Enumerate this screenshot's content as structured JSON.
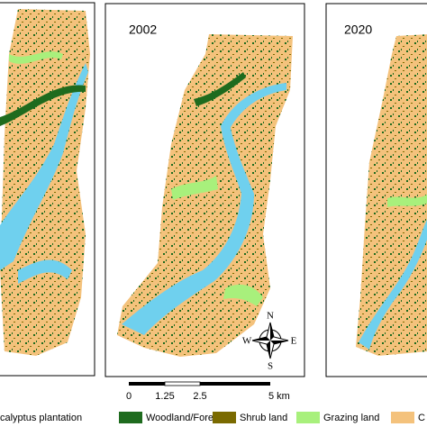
{
  "panels": [
    {
      "year": "2002"
    },
    {
      "year": "2020"
    }
  ],
  "compass": {
    "north": "N",
    "south": "S",
    "west": "W",
    "east": "E"
  },
  "scale_bar": {
    "labels": [
      "0",
      "1.25",
      "2.5",
      "5 km"
    ]
  },
  "legend": {
    "items": [
      "calyptus plantation",
      "Woodland/Forest",
      "Shrub land",
      "Grazing land",
      "C"
    ]
  }
}
